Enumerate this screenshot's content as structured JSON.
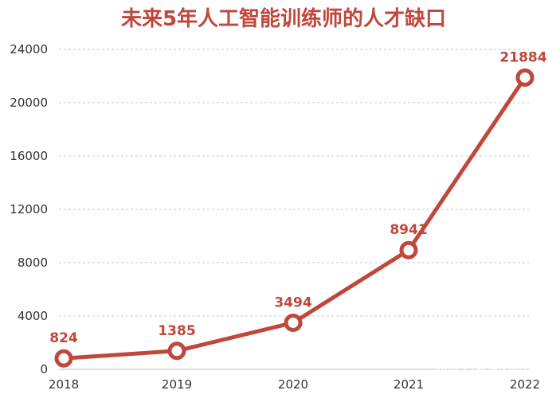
{
  "chart_data": {
    "type": "line",
    "title": "未来5年人工智能训练师的人才缺口",
    "xlabel": "",
    "ylabel": "",
    "categories": [
      "2018",
      "2019",
      "2020",
      "2021",
      "2022"
    ],
    "series": [
      {
        "values": [
          824,
          1385,
          3494,
          8941,
          21884
        ]
      }
    ],
    "data_labels": [
      "824",
      "1385",
      "3494",
      "8941",
      "21884"
    ],
    "y_ticks": [
      "0",
      "4000",
      "8000",
      "12000",
      "16000",
      "20000",
      "24000"
    ],
    "ylim": [
      0,
      24000
    ],
    "grid": "horizontal-dashed",
    "legend": "none",
    "colors": {
      "line": "#c0473c",
      "title": "#c0473c",
      "grid": "#c8c8c8"
    }
  },
  "watermark": "知乎 @数据的那些事"
}
